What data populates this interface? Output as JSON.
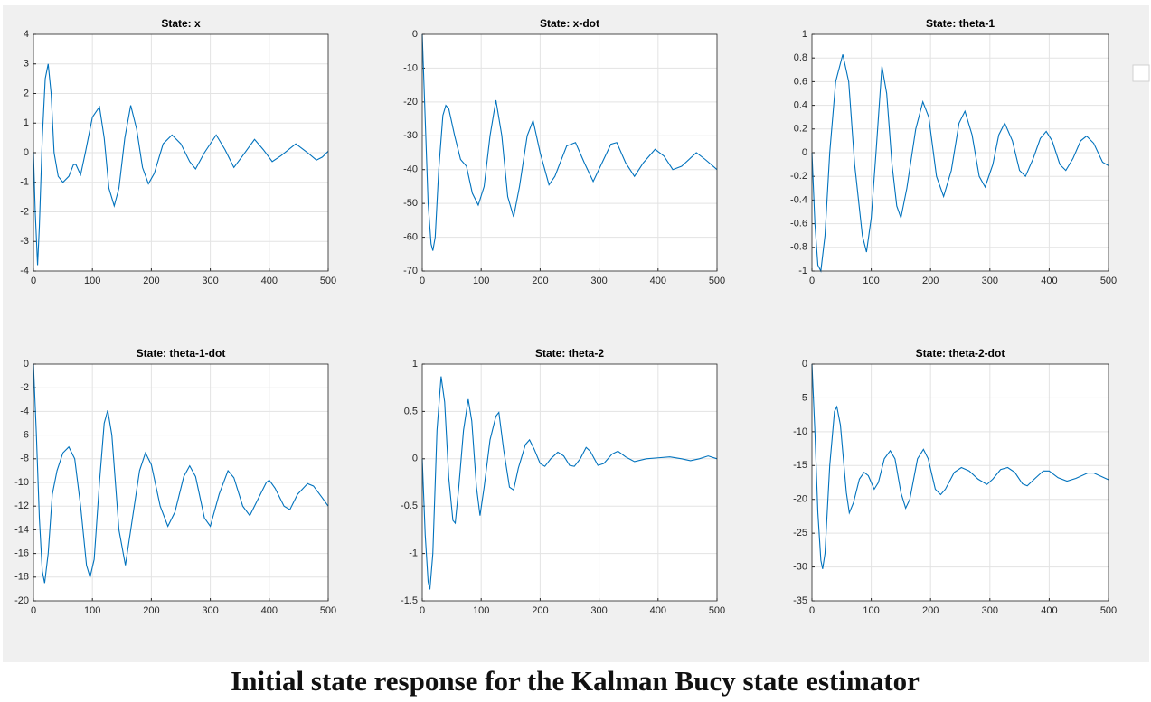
{
  "caption": "Initial state response for the Kalman Bucy state estimator",
  "chart_data": [
    {
      "type": "line",
      "title": "State: x",
      "color": "#0072bd",
      "grid": true,
      "x": [
        0,
        3,
        7,
        10,
        15,
        20,
        25,
        30,
        35,
        42,
        50,
        60,
        68,
        72,
        80,
        88,
        100,
        112,
        120,
        128,
        137,
        145,
        155,
        165,
        175,
        185,
        195,
        205,
        220,
        235,
        250,
        265,
        275,
        290,
        310,
        325,
        340,
        355,
        375,
        390,
        405,
        420,
        445,
        465,
        480,
        490,
        500
      ],
      "values": [
        0,
        -2,
        -3.8,
        -2.5,
        0.5,
        2.5,
        3.0,
        2.0,
        0,
        -0.8,
        -1.0,
        -0.8,
        -0.4,
        -0.4,
        -0.75,
        0,
        1.2,
        1.55,
        0.5,
        -1.2,
        -1.8,
        -1.2,
        0.5,
        1.6,
        0.8,
        -0.5,
        -1.05,
        -0.7,
        0.3,
        0.6,
        0.3,
        -0.3,
        -0.55,
        0,
        0.6,
        0.1,
        -0.5,
        -0.1,
        0.45,
        0.1,
        -0.3,
        -0.1,
        0.3,
        0,
        -0.25,
        -0.15,
        0.05
      ],
      "xlim": [
        0,
        500
      ],
      "xticks": [
        0,
        100,
        200,
        300,
        400,
        500
      ],
      "ylim": [
        -4,
        4
      ],
      "yticks": [
        -4,
        -3,
        -2,
        -1,
        0,
        1,
        2,
        3,
        4
      ]
    },
    {
      "type": "line",
      "title": "State: x-dot",
      "color": "#0072bd",
      "grid": true,
      "x": [
        0,
        5,
        10,
        15,
        18,
        22,
        28,
        35,
        40,
        45,
        55,
        65,
        75,
        85,
        95,
        105,
        115,
        125,
        135,
        145,
        155,
        165,
        178,
        188,
        200,
        215,
        225,
        245,
        260,
        275,
        290,
        305,
        320,
        330,
        345,
        360,
        375,
        395,
        410,
        425,
        440,
        465,
        480,
        500
      ],
      "values": [
        0,
        -25,
        -50,
        -62,
        -64,
        -60,
        -40,
        -24,
        -21,
        -22,
        -30,
        -37,
        -39,
        -47,
        -50.5,
        -45,
        -30,
        -19.5,
        -30,
        -48,
        -54,
        -45,
        -30,
        -25.5,
        -35,
        -44.5,
        -42,
        -33,
        -32,
        -38,
        -43.5,
        -38,
        -32.5,
        -32,
        -38,
        -42,
        -38,
        -34,
        -36,
        -40,
        -39,
        -35,
        -37,
        -40
      ],
      "xlim": [
        0,
        500
      ],
      "xticks": [
        0,
        100,
        200,
        300,
        400,
        500
      ],
      "ylim": [
        -70,
        0
      ],
      "yticks": [
        -70,
        -60,
        -50,
        -40,
        -30,
        -20,
        -10,
        0
      ]
    },
    {
      "type": "line",
      "title": "State: theta-1",
      "color": "#0072bd",
      "grid": true,
      "x": [
        0,
        5,
        10,
        15,
        22,
        30,
        40,
        52,
        62,
        72,
        85,
        92,
        100,
        108,
        118,
        126,
        135,
        143,
        150,
        160,
        175,
        187,
        197,
        210,
        222,
        235,
        248,
        258,
        270,
        282,
        292,
        305,
        315,
        325,
        338,
        350,
        360,
        373,
        385,
        395,
        405,
        418,
        428,
        440,
        453,
        463,
        475,
        490,
        500
      ],
      "values": [
        0,
        -0.6,
        -0.95,
        -1.0,
        -0.7,
        0,
        0.6,
        0.83,
        0.6,
        -0.1,
        -0.7,
        -0.84,
        -0.55,
        0,
        0.73,
        0.5,
        -0.1,
        -0.45,
        -0.55,
        -0.3,
        0.2,
        0.43,
        0.3,
        -0.2,
        -0.37,
        -0.15,
        0.25,
        0.35,
        0.15,
        -0.2,
        -0.29,
        -0.1,
        0.15,
        0.25,
        0.1,
        -0.15,
        -0.2,
        -0.05,
        0.12,
        0.18,
        0.1,
        -0.1,
        -0.15,
        -0.05,
        0.1,
        0.14,
        0.08,
        -0.08,
        -0.11
      ],
      "xlim": [
        0,
        500
      ],
      "xticks": [
        0,
        100,
        200,
        300,
        400,
        500
      ],
      "ylim": [
        -1,
        1
      ],
      "yticks": [
        -1,
        -0.8,
        -0.6,
        -0.4,
        -0.2,
        0,
        0.2,
        0.4,
        0.6,
        0.8,
        1
      ]
    },
    {
      "type": "line",
      "title": "State: theta-1-dot",
      "color": "#0072bd",
      "grid": true,
      "x": [
        0,
        5,
        10,
        15,
        19,
        25,
        32,
        40,
        50,
        60,
        70,
        80,
        90,
        96,
        103,
        112,
        120,
        126,
        133,
        145,
        156,
        165,
        180,
        190,
        200,
        215,
        228,
        240,
        255,
        265,
        275,
        290,
        300,
        315,
        330,
        340,
        355,
        367,
        380,
        395,
        400,
        410,
        425,
        435,
        448,
        465,
        475,
        490,
        500
      ],
      "values": [
        0,
        -6,
        -13,
        -17.5,
        -18.5,
        -16,
        -11,
        -9,
        -7.5,
        -7,
        -8,
        -12,
        -17,
        -18,
        -16.5,
        -10,
        -5,
        -3.9,
        -6,
        -14,
        -17,
        -14,
        -9,
        -7.5,
        -8.5,
        -12,
        -13.7,
        -12.5,
        -9.5,
        -8.6,
        -9.5,
        -13,
        -13.7,
        -11,
        -9,
        -9.6,
        -12,
        -12.8,
        -11.5,
        -10,
        -9.8,
        -10.5,
        -12,
        -12.3,
        -11,
        -10.1,
        -10.3,
        -11.3,
        -12
      ],
      "xlim": [
        0,
        500
      ],
      "xticks": [
        0,
        100,
        200,
        300,
        400,
        500
      ],
      "ylim": [
        -20,
        0
      ],
      "yticks": [
        -20,
        -18,
        -16,
        -14,
        -12,
        -10,
        -8,
        -6,
        -4,
        -2,
        0
      ]
    },
    {
      "type": "line",
      "title": "State: theta-2",
      "color": "#0072bd",
      "grid": true,
      "x": [
        0,
        5,
        10,
        13,
        18,
        25,
        32,
        38,
        45,
        52,
        56,
        62,
        70,
        78,
        84,
        92,
        98,
        105,
        115,
        125,
        130,
        138,
        148,
        155,
        163,
        175,
        182,
        190,
        200,
        208,
        218,
        230,
        240,
        250,
        258,
        268,
        278,
        285,
        298,
        308,
        322,
        332,
        345,
        360,
        380,
        400,
        420,
        440,
        455,
        470,
        485,
        500
      ],
      "values": [
        0,
        -0.8,
        -1.3,
        -1.38,
        -1.0,
        0.3,
        0.87,
        0.6,
        -0.2,
        -0.65,
        -0.68,
        -0.3,
        0.3,
        0.63,
        0.4,
        -0.3,
        -0.6,
        -0.3,
        0.2,
        0.45,
        0.49,
        0.1,
        -0.3,
        -0.33,
        -0.1,
        0.15,
        0.2,
        0.1,
        -0.05,
        -0.08,
        0,
        0.07,
        0.03,
        -0.07,
        -0.08,
        0,
        0.12,
        0.08,
        -0.07,
        -0.05,
        0.05,
        0.08,
        0.02,
        -0.03,
        0,
        0.01,
        0.02,
        0,
        -0.02,
        0,
        0.03,
        0
      ],
      "xlim": [
        0,
        500
      ],
      "xticks": [
        0,
        100,
        200,
        300,
        400,
        500
      ],
      "ylim": [
        -1.5,
        1
      ],
      "yticks": [
        -1.5,
        -1,
        -0.5,
        0,
        0.5,
        1
      ]
    },
    {
      "type": "line",
      "title": "State: theta-2-dot",
      "color": "#0072bd",
      "grid": true,
      "x": [
        0,
        5,
        10,
        15,
        18,
        22,
        30,
        38,
        42,
        48,
        58,
        63,
        70,
        80,
        88,
        95,
        105,
        112,
        122,
        132,
        140,
        150,
        158,
        165,
        178,
        188,
        196,
        208,
        217,
        225,
        240,
        252,
        265,
        280,
        295,
        305,
        318,
        330,
        342,
        355,
        363,
        375,
        390,
        400,
        415,
        430,
        445,
        465,
        475,
        490,
        500
      ],
      "values": [
        0,
        -10,
        -22,
        -29,
        -30.3,
        -28,
        -15,
        -7,
        -6.3,
        -9,
        -19,
        -22,
        -20.5,
        -17,
        -16,
        -16.5,
        -18.5,
        -17.5,
        -14,
        -12.8,
        -14,
        -19,
        -21.3,
        -20,
        -14,
        -12.6,
        -14,
        -18.5,
        -19.3,
        -18.5,
        -16,
        -15.3,
        -15.8,
        -17,
        -17.8,
        -17,
        -15.6,
        -15.3,
        -16,
        -17.7,
        -18,
        -17,
        -15.8,
        -15.8,
        -16.8,
        -17.3,
        -16.9,
        -16.1,
        -16.1,
        -16.7,
        -17.1
      ],
      "xlim": [
        0,
        500
      ],
      "xticks": [
        0,
        100,
        200,
        300,
        400,
        500
      ],
      "ylim": [
        -35,
        0
      ],
      "yticks": [
        -35,
        -30,
        -25,
        -20,
        -15,
        -10,
        -5,
        0
      ]
    }
  ]
}
